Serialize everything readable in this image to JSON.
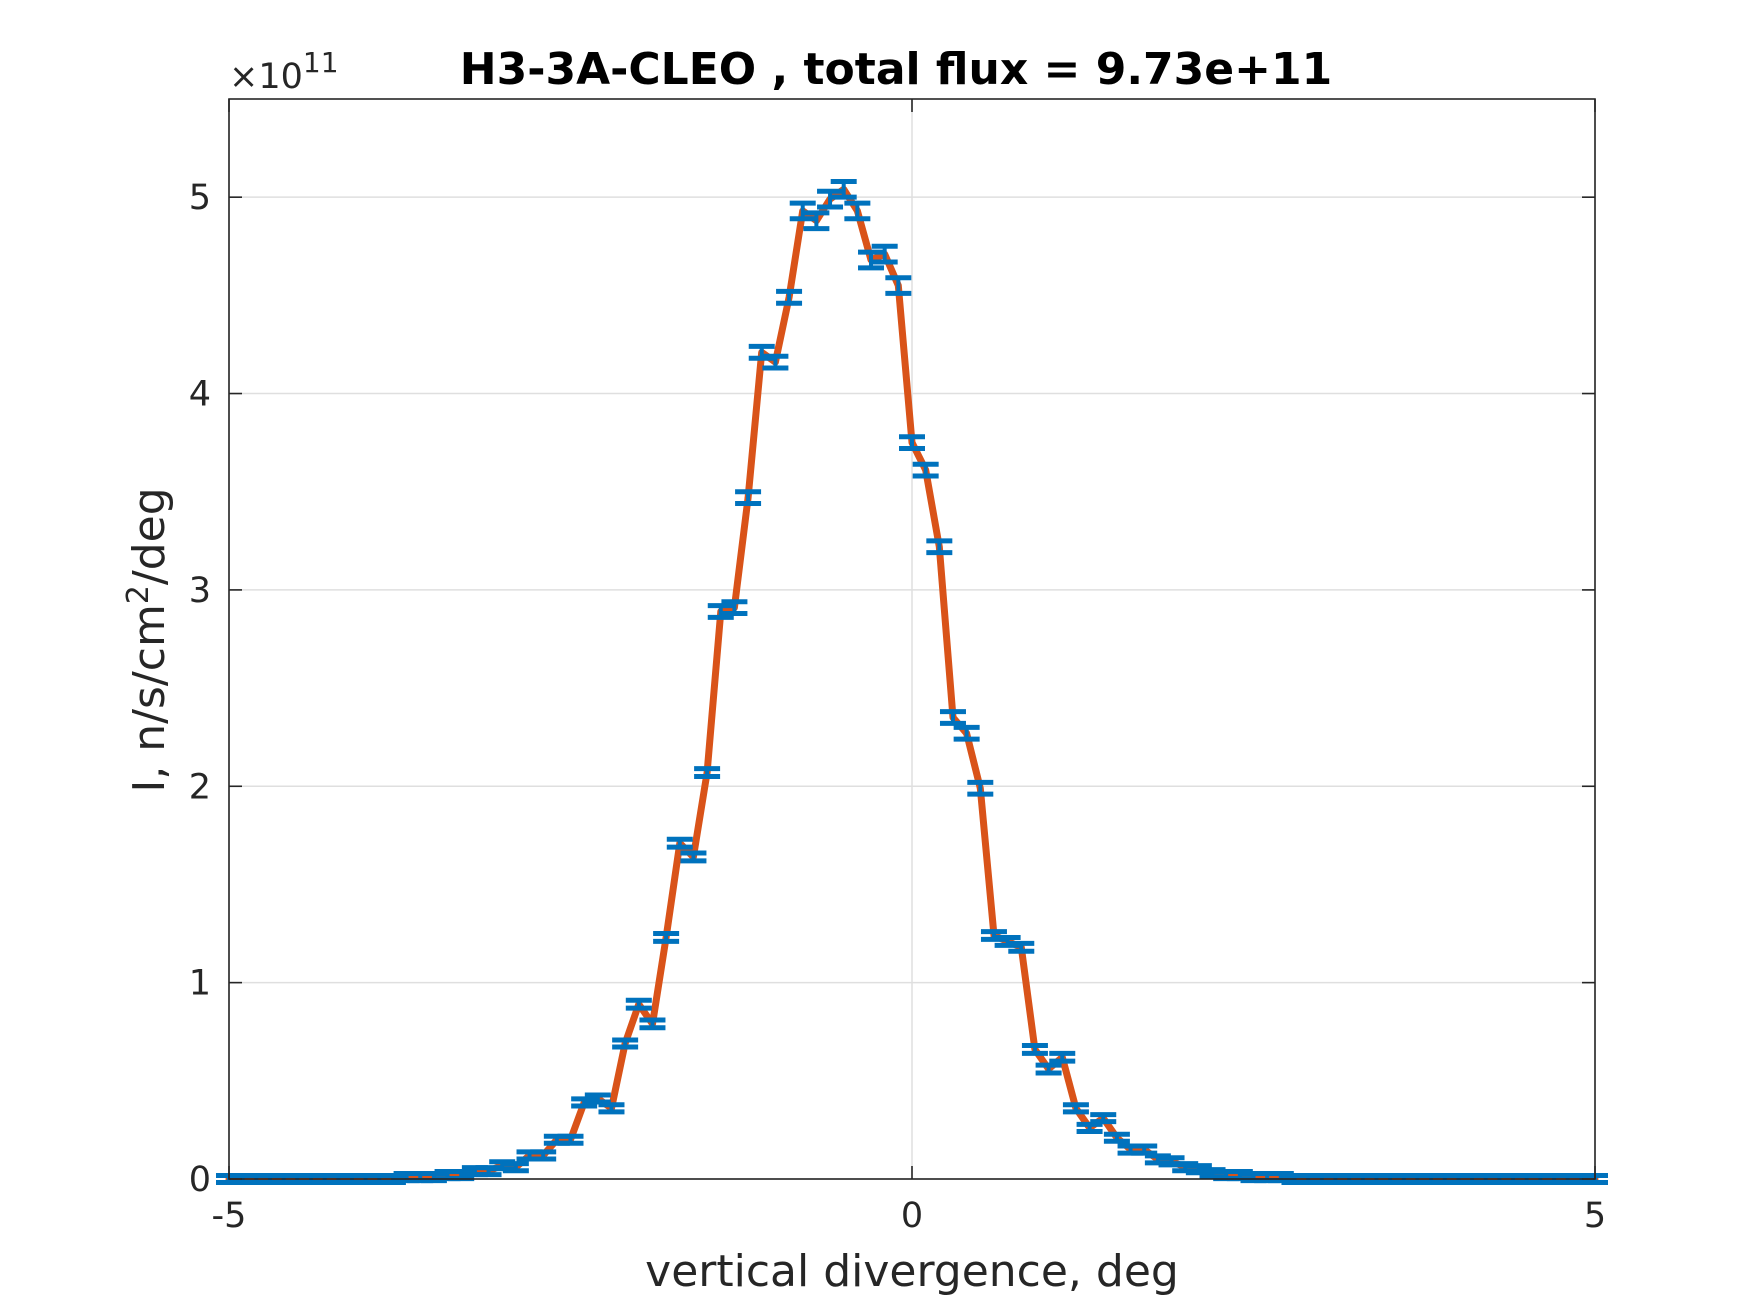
{
  "chart_data": {
    "type": "line",
    "title": "H3-3A-CLEO , total flux =  9.73e+11",
    "xlabel": "vertical divergence, deg",
    "ylabel_main": "I, n/s/cm",
    "ylabel_sup": "2",
    "ylabel_tail": "/deg",
    "y_exponent_prefix": "×10",
    "y_exponent_power": "11",
    "y_scale": 100000000000.0,
    "xlim": [
      -5,
      5
    ],
    "ylim": [
      0,
      5.5
    ],
    "xticks": [
      -5,
      0,
      5
    ],
    "xtick_labels": [
      "-5",
      "0",
      "5"
    ],
    "yticks": [
      0,
      1,
      2,
      3,
      4,
      5
    ],
    "ytick_labels": [
      "0",
      "1",
      "2",
      "3",
      "4",
      "5"
    ],
    "grid": true,
    "colors": {
      "line": "#D95319",
      "errorbar": "#0072BD",
      "axes": "#262626",
      "grid": "#dfdfdf"
    },
    "series": [
      {
        "x": [
          -5.0,
          -4.9,
          -4.8,
          -4.7,
          -4.6,
          -4.5,
          -4.4,
          -4.3,
          -4.2,
          -4.1,
          -4.0,
          -3.9,
          -3.8,
          -3.7,
          -3.6,
          -3.5,
          -3.4,
          -3.3,
          -3.2,
          -3.1,
          -3.0,
          -2.9,
          -2.8,
          -2.7,
          -2.6,
          -2.5,
          -2.4,
          -2.3,
          -2.2,
          -2.1,
          -2.0,
          -1.9,
          -1.8,
          -1.7,
          -1.6,
          -1.5,
          -1.4,
          -1.3,
          -1.2,
          -1.1,
          -1.0,
          -0.9,
          -0.8,
          -0.7,
          -0.6,
          -0.5,
          -0.4,
          -0.3,
          -0.2,
          -0.1,
          0.0,
          0.1,
          0.2,
          0.3,
          0.4,
          0.5,
          0.6,
          0.7,
          0.8,
          0.9,
          1.0,
          1.1,
          1.2,
          1.3,
          1.4,
          1.5,
          1.6,
          1.7,
          1.8,
          1.9,
          2.0,
          2.1,
          2.2,
          2.3,
          2.4,
          2.5,
          2.6,
          2.7,
          2.8,
          2.9,
          3.0,
          3.1,
          3.2,
          3.3,
          3.4,
          3.5,
          3.6,
          3.7,
          3.8,
          3.9,
          4.0,
          4.1,
          4.2,
          4.3,
          4.4,
          4.5,
          4.6,
          4.7,
          4.8,
          4.9,
          5.0
        ],
        "y": [
          0.0,
          0.0,
          0.0,
          0.0,
          0.0,
          0.0,
          0.0,
          0.0,
          0.0,
          0.0,
          0.0,
          0.0,
          0.0,
          0.01,
          0.01,
          0.01,
          0.02,
          0.02,
          0.04,
          0.04,
          0.07,
          0.06,
          0.12,
          0.12,
          0.2,
          0.2,
          0.39,
          0.41,
          0.36,
          0.69,
          0.89,
          0.79,
          1.23,
          1.71,
          1.64,
          2.07,
          2.89,
          2.91,
          3.47,
          4.21,
          4.16,
          4.49,
          4.93,
          4.88,
          4.99,
          5.04,
          4.93,
          4.68,
          4.71,
          4.55,
          3.75,
          3.61,
          3.22,
          2.35,
          2.27,
          1.99,
          1.24,
          1.21,
          1.18,
          0.66,
          0.56,
          0.62,
          0.36,
          0.26,
          0.31,
          0.21,
          0.15,
          0.15,
          0.1,
          0.09,
          0.06,
          0.05,
          0.03,
          0.02,
          0.02,
          0.01,
          0.01,
          0.01,
          0.0,
          0.0,
          0.0,
          0.0,
          0.0,
          0.0,
          0.0,
          0.0,
          0.0,
          0.0,
          0.0,
          0.0,
          0.0,
          0.0,
          0.0,
          0.0,
          0.0,
          0.0,
          0.0,
          0.0,
          0.0,
          0.0,
          0.0
        ],
        "err": [
          0.0,
          0.0,
          0.0,
          0.0,
          0.0,
          0.0,
          0.0,
          0.0,
          0.0,
          0.0,
          0.0,
          0.0,
          0.0,
          0.0,
          0.0,
          0.0,
          0.01,
          0.01,
          0.01,
          0.01,
          0.01,
          0.01,
          0.01,
          0.01,
          0.01,
          0.01,
          0.01,
          0.01,
          0.01,
          0.01,
          0.02,
          0.02,
          0.02,
          0.02,
          0.02,
          0.02,
          0.03,
          0.03,
          0.03,
          0.03,
          0.03,
          0.03,
          0.04,
          0.04,
          0.04,
          0.04,
          0.04,
          0.04,
          0.04,
          0.04,
          0.03,
          0.03,
          0.03,
          0.03,
          0.03,
          0.03,
          0.02,
          0.02,
          0.02,
          0.02,
          0.02,
          0.02,
          0.01,
          0.01,
          0.01,
          0.01,
          0.01,
          0.01,
          0.01,
          0.01,
          0.01,
          0.0,
          0.0,
          0.0,
          0.0,
          0.0,
          0.0,
          0.0,
          0.0,
          0.0,
          0.0,
          0.0,
          0.0,
          0.0,
          0.0,
          0.0,
          0.0,
          0.0,
          0.0,
          0.0,
          0.0,
          0.0,
          0.0,
          0.0,
          0.0,
          0.0,
          0.0,
          0.0,
          0.0,
          0.0,
          0.0
        ]
      }
    ]
  }
}
